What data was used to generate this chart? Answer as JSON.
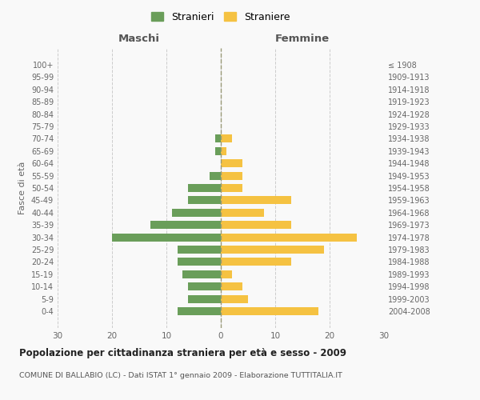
{
  "age_groups": [
    "0-4",
    "5-9",
    "10-14",
    "15-19",
    "20-24",
    "25-29",
    "30-34",
    "35-39",
    "40-44",
    "45-49",
    "50-54",
    "55-59",
    "60-64",
    "65-69",
    "70-74",
    "75-79",
    "80-84",
    "85-89",
    "90-94",
    "95-99",
    "100+"
  ],
  "birth_years": [
    "2004-2008",
    "1999-2003",
    "1994-1998",
    "1989-1993",
    "1984-1988",
    "1979-1983",
    "1974-1978",
    "1969-1973",
    "1964-1968",
    "1959-1963",
    "1954-1958",
    "1949-1953",
    "1944-1948",
    "1939-1943",
    "1934-1938",
    "1929-1933",
    "1924-1928",
    "1919-1923",
    "1914-1918",
    "1909-1913",
    "≤ 1908"
  ],
  "males": [
    8,
    6,
    6,
    7,
    8,
    8,
    20,
    13,
    9,
    6,
    6,
    2,
    0,
    1,
    1,
    0,
    0,
    0,
    0,
    0,
    0
  ],
  "females": [
    18,
    5,
    4,
    2,
    13,
    19,
    25,
    13,
    8,
    13,
    4,
    4,
    4,
    1,
    2,
    0,
    0,
    0,
    0,
    0,
    0
  ],
  "male_color": "#6a9e5a",
  "female_color": "#f5c242",
  "background_color": "#f9f9f9",
  "grid_color": "#cccccc",
  "title": "Popolazione per cittadinanza straniera per età e sesso - 2009",
  "subtitle": "COMUNE DI BALLABIO (LC) - Dati ISTAT 1° gennaio 2009 - Elaborazione TUTTITALIA.IT",
  "ylabel_left": "Fasce di età",
  "xlabel_left": "Maschi",
  "xlabel_top_right": "Femmine",
  "legend_male": "Stranieri",
  "legend_female": "Straniere",
  "xlim": 30
}
